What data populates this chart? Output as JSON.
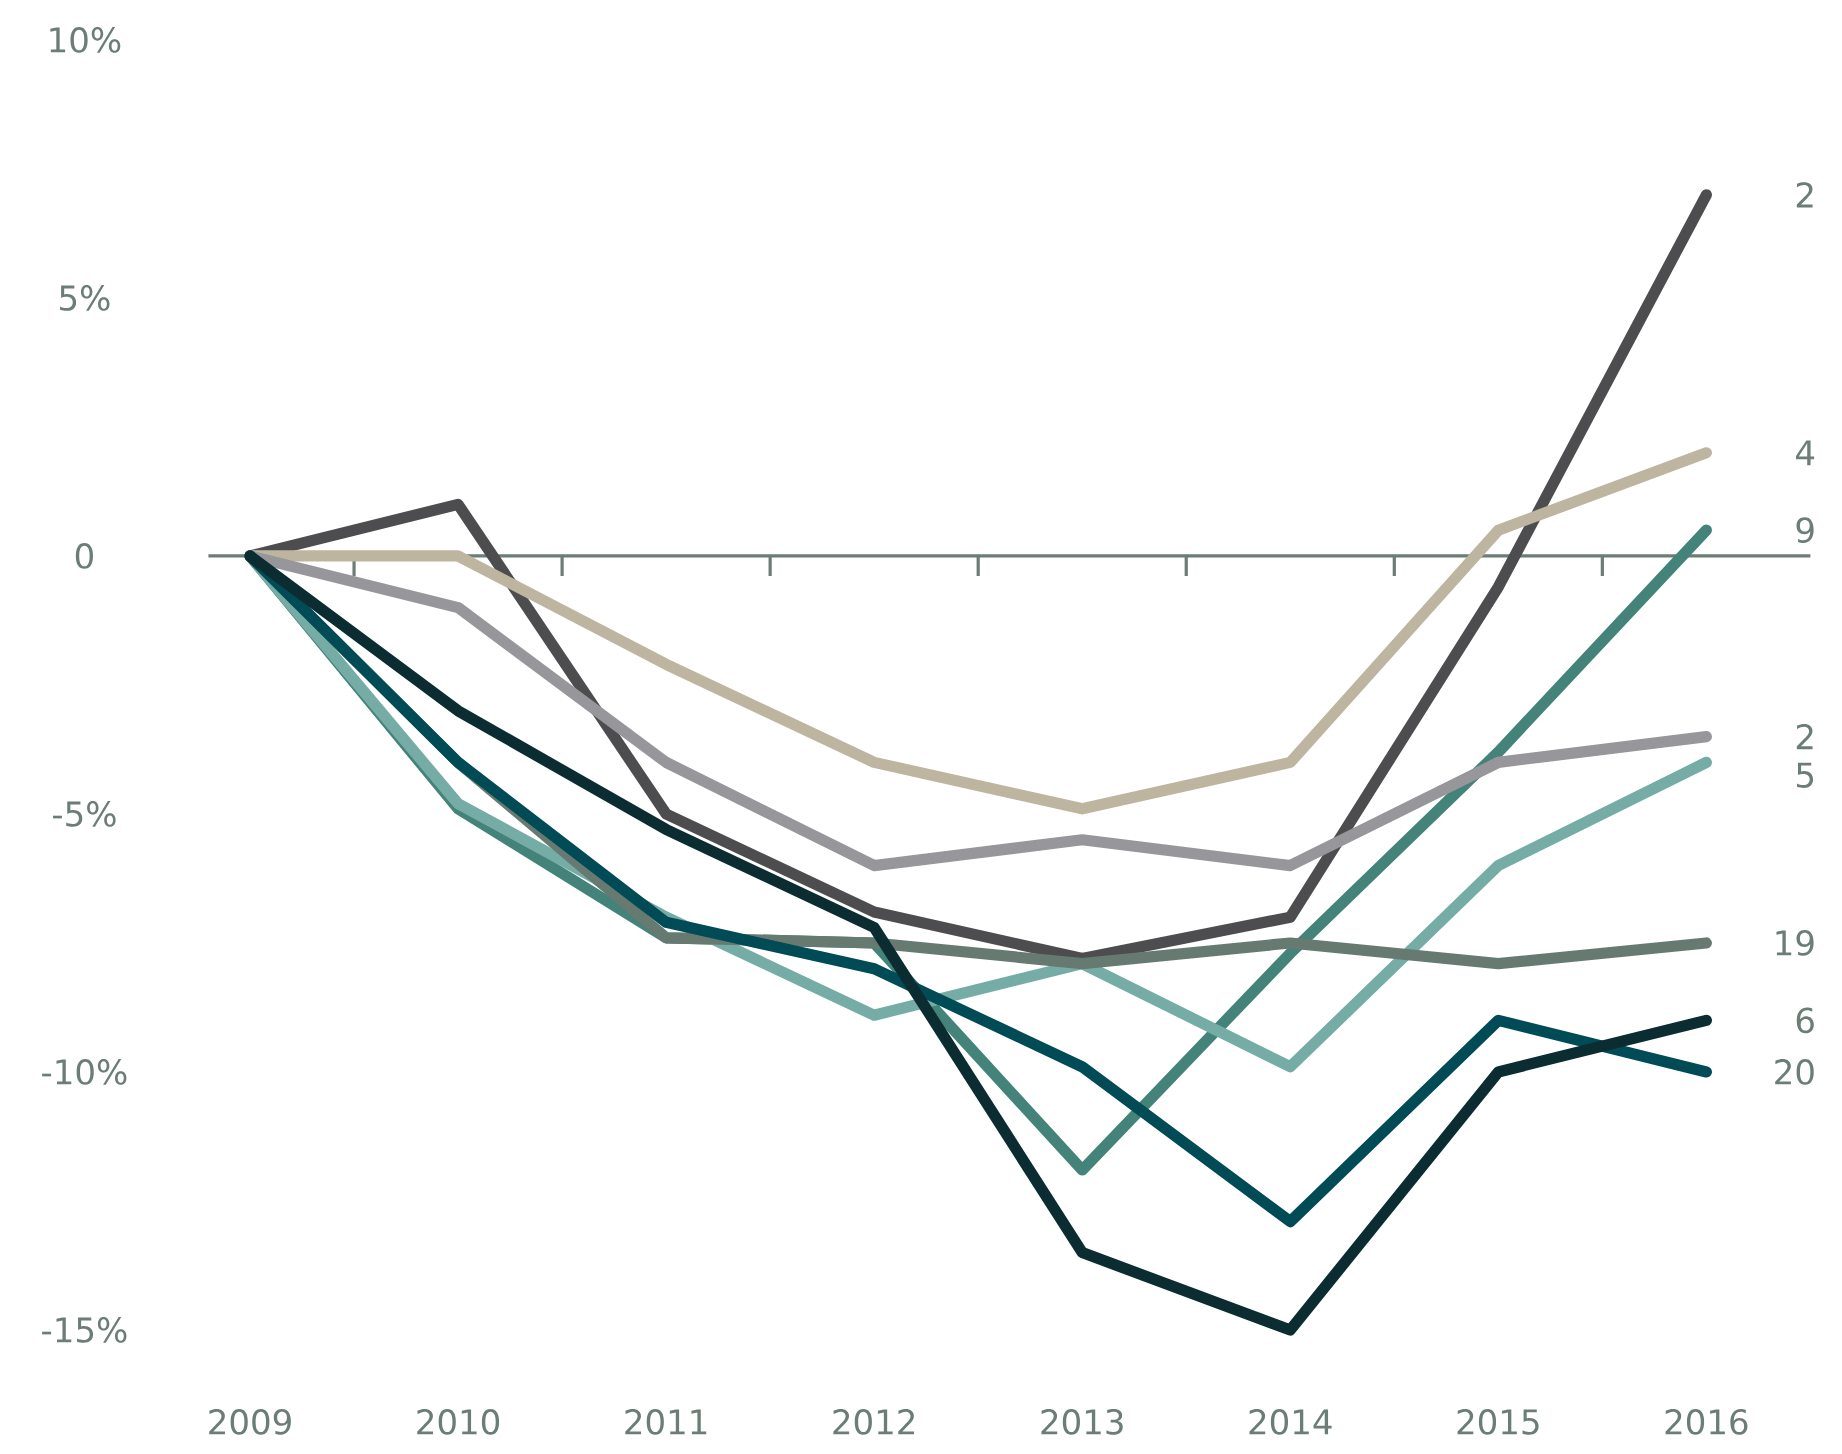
{
  "chart_data": {
    "type": "line",
    "categories": [
      "2009",
      "2010",
      "2011",
      "2012",
      "2013",
      "2014",
      "2015",
      "2016"
    ],
    "ylim": [
      -15,
      10
    ],
    "yticks": [
      {
        "value": 10,
        "label": "10%"
      },
      {
        "value": 5,
        "label": "5%"
      },
      0,
      {
        "value": -5,
        "label": "-5%"
      },
      {
        "value": -10,
        "label": "-10%"
      },
      {
        "value": -15,
        "label": "-15%"
      }
    ],
    "ref_lines": [
      {
        "axis": "y",
        "value": 0,
        "color": "#6b7d75"
      }
    ],
    "legend": false,
    "grid": false,
    "marker": "none",
    "line_style": "solid",
    "series": [
      {
        "name": "2",
        "color": "#4d4d4f",
        "values": [
          0,
          1.0,
          -5.0,
          -6.9,
          -7.8,
          -7.0,
          -0.6,
          7.0
        ]
      },
      {
        "name": "4",
        "color": "#bdb5a0",
        "values": [
          0,
          0,
          -2.1,
          -4.0,
          -4.9,
          -4.0,
          0.5,
          2.0
        ]
      },
      {
        "name": "9",
        "color": "#44837a",
        "values": [
          0,
          -4.9,
          -7.4,
          -7.5,
          -11.9,
          -7.7,
          -3.8,
          0.5
        ]
      },
      {
        "name": "2",
        "color": "#96969b",
        "values": [
          0,
          -1.0,
          -4.0,
          -6.0,
          -5.5,
          -6.0,
          -4.0,
          -3.5
        ]
      },
      {
        "name": "5",
        "color": "#75ada6",
        "values": [
          0,
          -4.8,
          -7.0,
          -8.9,
          -7.9,
          -9.9,
          -6.0,
          -4.0
        ]
      },
      {
        "name": "19",
        "color": "#667a72",
        "values": [
          0,
          -4.0,
          -7.4,
          -7.5,
          -7.9,
          -7.5,
          -7.9,
          -7.5
        ]
      },
      {
        "name": "20",
        "color": "#004b55",
        "values": [
          0,
          -4.0,
          -7.1,
          -8.0,
          -9.9,
          -12.9,
          -9.0,
          -10.0
        ]
      },
      {
        "name": "6",
        "color": "#0b2d32",
        "values": [
          0,
          -3.0,
          -5.3,
          -7.2,
          -13.5,
          -15.0,
          -10.0,
          -9.0
        ]
      }
    ]
  }
}
